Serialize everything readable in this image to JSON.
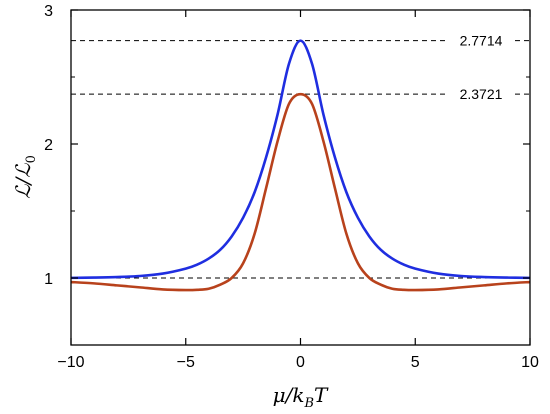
{
  "chart_data": {
    "type": "line",
    "xlabel": "μ/k_BT",
    "ylabel": "ℒ/ℒ₀",
    "xlim": [
      -10,
      10
    ],
    "ylim": [
      0.5,
      3
    ],
    "x_ticks": [
      -10,
      -5,
      0,
      5,
      10
    ],
    "x_tick_labels": [
      "−10",
      "−5",
      "0",
      "5",
      "10"
    ],
    "y_ticks": [
      1,
      2,
      3
    ],
    "y_tick_labels": [
      "1",
      "2",
      "3"
    ],
    "grid": false,
    "reference_lines": [
      {
        "y": 2.7714,
        "label": "2.7714",
        "style": "dashed"
      },
      {
        "y": 2.3721,
        "label": "2.3721",
        "style": "dashed"
      },
      {
        "y": 1.0,
        "label": "",
        "style": "dashed"
      }
    ],
    "x": [
      -10,
      -9,
      -8,
      -7,
      -6,
      -5,
      -4.5,
      -4,
      -3.5,
      -3,
      -2.5,
      -2,
      -1.5,
      -1,
      -0.5,
      0,
      0.5,
      1,
      1.5,
      2,
      2.5,
      3,
      3.5,
      4,
      4.5,
      5,
      6,
      7,
      8,
      9,
      10
    ],
    "series": [
      {
        "color": "#1f2ee0",
        "values": [
          1.001,
          1.003,
          1.007,
          1.015,
          1.033,
          1.07,
          1.1,
          1.145,
          1.21,
          1.31,
          1.45,
          1.64,
          1.9,
          2.22,
          2.6,
          2.7714,
          2.6,
          2.22,
          1.9,
          1.64,
          1.45,
          1.31,
          1.21,
          1.145,
          1.1,
          1.07,
          1.033,
          1.015,
          1.007,
          1.003,
          1.001
        ]
      },
      {
        "color": "#b8421c",
        "values": [
          0.97,
          0.96,
          0.945,
          0.93,
          0.915,
          0.91,
          0.912,
          0.92,
          0.95,
          1.0,
          1.11,
          1.33,
          1.67,
          2.02,
          2.3,
          2.3721,
          2.3,
          2.02,
          1.67,
          1.33,
          1.11,
          1.0,
          0.95,
          0.92,
          0.912,
          0.91,
          0.915,
          0.93,
          0.945,
          0.96,
          0.97
        ]
      }
    ]
  }
}
